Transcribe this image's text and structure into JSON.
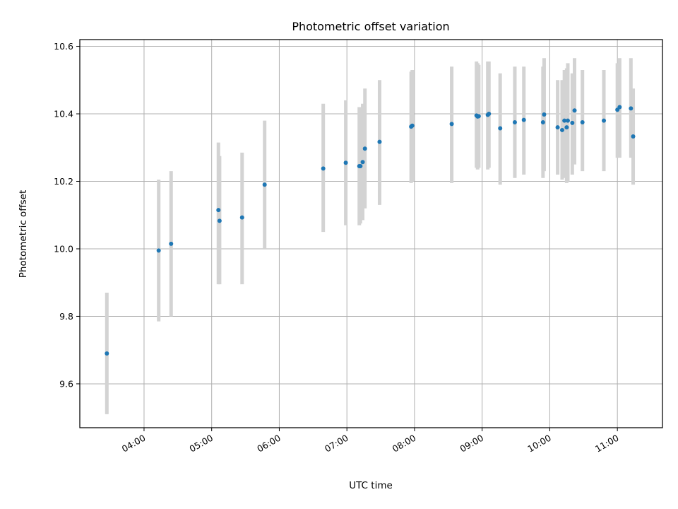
{
  "chart_data": {
    "type": "scatter",
    "title": "Photometric offset variation",
    "xlabel": "UTC time",
    "ylabel": "Photometric offset",
    "x_unit": "UTC time of day (HH:MM)",
    "xlim": [
      "03:03",
      "11:40"
    ],
    "ylim": [
      9.47,
      10.62
    ],
    "grid": true,
    "x_ticks": [
      "04:00",
      "05:00",
      "06:00",
      "07:00",
      "08:00",
      "09:00",
      "10:00",
      "11:00"
    ],
    "y_ticks": [
      "9.6",
      "9.8",
      "10.0",
      "10.2",
      "10.4",
      "10.6"
    ],
    "y_tick_values": [
      9.6,
      9.8,
      10.0,
      10.2,
      10.4,
      10.6
    ],
    "colors": {
      "point": "#1f77b4",
      "errorbar": "#d3d3d3",
      "grid": "#b0b0b0",
      "axes": "#000000"
    },
    "points": [
      {
        "t": "03:27",
        "y": 9.69,
        "lo": 9.51,
        "hi": 9.87
      },
      {
        "t": "04:13",
        "y": 9.995,
        "lo": 9.785,
        "hi": 10.205
      },
      {
        "t": "04:24",
        "y": 10.015,
        "lo": 9.8,
        "hi": 10.23
      },
      {
        "t": "05:06",
        "y": 10.115,
        "lo": 9.895,
        "hi": 10.315
      },
      {
        "t": "05:07",
        "y": 10.083,
        "lo": 9.895,
        "hi": 10.275
      },
      {
        "t": "05:27",
        "y": 10.093,
        "lo": 9.895,
        "hi": 10.285
      },
      {
        "t": "05:47",
        "y": 10.19,
        "lo": 10.0,
        "hi": 10.38
      },
      {
        "t": "06:39",
        "y": 10.238,
        "lo": 10.05,
        "hi": 10.43
      },
      {
        "t": "06:59",
        "y": 10.255,
        "lo": 10.07,
        "hi": 10.44
      },
      {
        "t": "07:11",
        "y": 10.245,
        "lo": 10.07,
        "hi": 10.42
      },
      {
        "t": "07:12",
        "y": 10.245,
        "lo": 10.075,
        "hi": 10.42
      },
      {
        "t": "07:14",
        "y": 10.257,
        "lo": 10.085,
        "hi": 10.43
      },
      {
        "t": "07:16",
        "y": 10.297,
        "lo": 10.12,
        "hi": 10.475
      },
      {
        "t": "07:29",
        "y": 10.317,
        "lo": 10.13,
        "hi": 10.5
      },
      {
        "t": "07:57",
        "y": 10.362,
        "lo": 10.195,
        "hi": 10.525
      },
      {
        "t": "07:58",
        "y": 10.365,
        "lo": 10.2,
        "hi": 10.53
      },
      {
        "t": "08:33",
        "y": 10.37,
        "lo": 10.195,
        "hi": 10.54
      },
      {
        "t": "08:55",
        "y": 10.395,
        "lo": 10.24,
        "hi": 10.555
      },
      {
        "t": "08:56",
        "y": 10.392,
        "lo": 10.235,
        "hi": 10.55
      },
      {
        "t": "08:57",
        "y": 10.393,
        "lo": 10.24,
        "hi": 10.545
      },
      {
        "t": "09:05",
        "y": 10.397,
        "lo": 10.235,
        "hi": 10.555
      },
      {
        "t": "09:06",
        "y": 10.4,
        "lo": 10.24,
        "hi": 10.555
      },
      {
        "t": "09:16",
        "y": 10.357,
        "lo": 10.19,
        "hi": 10.52
      },
      {
        "t": "09:29",
        "y": 10.375,
        "lo": 10.21,
        "hi": 10.54
      },
      {
        "t": "09:37",
        "y": 10.382,
        "lo": 10.22,
        "hi": 10.54
      },
      {
        "t": "09:54",
        "y": 10.375,
        "lo": 10.21,
        "hi": 10.54
      },
      {
        "t": "09:55",
        "y": 10.398,
        "lo": 10.23,
        "hi": 10.565
      },
      {
        "t": "10:07",
        "y": 10.36,
        "lo": 10.22,
        "hi": 10.5
      },
      {
        "t": "10:11",
        "y": 10.352,
        "lo": 10.205,
        "hi": 10.5
      },
      {
        "t": "10:13",
        "y": 10.38,
        "lo": 10.21,
        "hi": 10.53
      },
      {
        "t": "10:15",
        "y": 10.36,
        "lo": 10.195,
        "hi": 10.535
      },
      {
        "t": "10:16",
        "y": 10.38,
        "lo": 10.2,
        "hi": 10.55
      },
      {
        "t": "10:20",
        "y": 10.373,
        "lo": 10.22,
        "hi": 10.52
      },
      {
        "t": "10:22",
        "y": 10.41,
        "lo": 10.25,
        "hi": 10.565
      },
      {
        "t": "10:29",
        "y": 10.375,
        "lo": 10.23,
        "hi": 10.53
      },
      {
        "t": "10:48",
        "y": 10.38,
        "lo": 10.23,
        "hi": 10.53
      },
      {
        "t": "11:00",
        "y": 10.412,
        "lo": 10.27,
        "hi": 10.55
      },
      {
        "t": "11:02",
        "y": 10.42,
        "lo": 10.27,
        "hi": 10.565
      },
      {
        "t": "11:12",
        "y": 10.416,
        "lo": 10.27,
        "hi": 10.565
      },
      {
        "t": "11:14",
        "y": 10.333,
        "lo": 10.19,
        "hi": 10.475
      }
    ]
  }
}
